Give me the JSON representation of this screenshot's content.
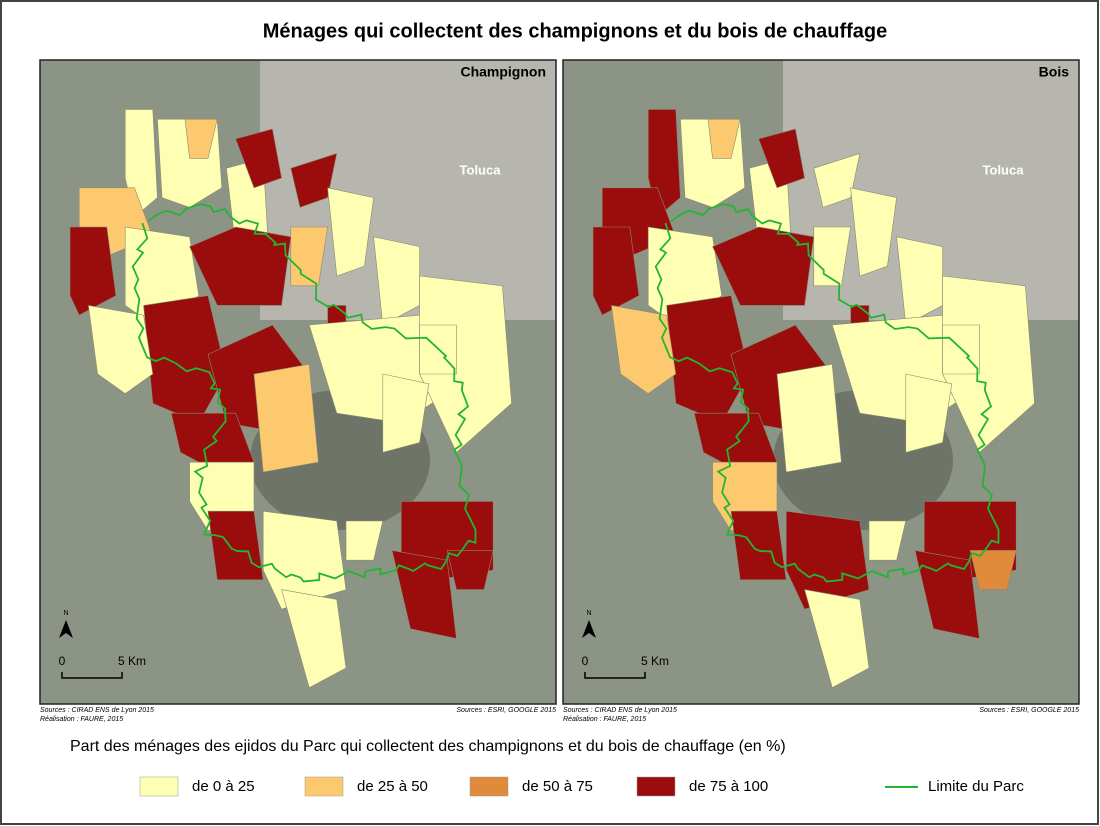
{
  "title": "Ménages qui collectent des champignons et du bois de chauffage",
  "maps": [
    {
      "label": "Champignon",
      "city": "Toluca",
      "north": "N",
      "scale_start": "0",
      "scale_end": "5 Km",
      "sources_left": [
        "Sources : CIRAD ENS de Lyon 2015",
        "Réalisation : FAURE, 2015"
      ],
      "sources_right": "Sources : ESRI, GOOGLE 2015"
    },
    {
      "label": "Bois",
      "city": "Toluca",
      "north": "N",
      "scale_start": "0",
      "scale_end": "5 Km",
      "sources_left": [
        "Sources : CIRAD ENS de Lyon 2015",
        "Réalisation : FAURE, 2015"
      ],
      "sources_right": "Sources : ESRI, GOOGLE 2015"
    }
  ],
  "legend": {
    "title": "Part des ménages des ejidos du Parc qui collectent des champignons et du bois de chauffage (en %)",
    "items": [
      {
        "label": "de 0 à 25",
        "color": "#ffffb3"
      },
      {
        "label": "de 25 à 50",
        "color": "#fdc96f"
      },
      {
        "label": "de 50 à 75",
        "color": "#e08a3c"
      },
      {
        "label": "de 75 à 100",
        "color": "#9b0d0d"
      }
    ],
    "line": {
      "label": "Limite du Parc",
      "color": "#22b533"
    }
  }
}
